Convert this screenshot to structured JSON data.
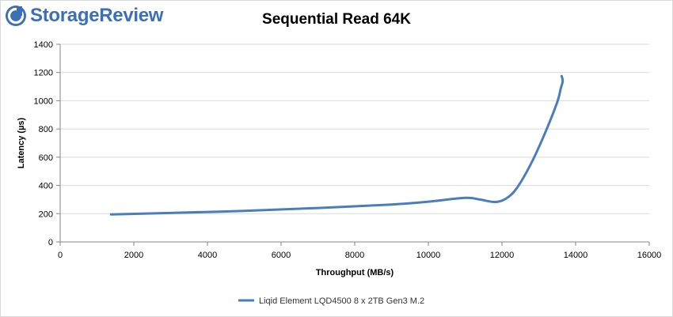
{
  "brand": {
    "name": "StorageReview",
    "accent": "#3b6fb6"
  },
  "chart_data": {
    "type": "line",
    "title": "Sequential Read 64K",
    "xlabel": "Throughput (MB/s)",
    "ylabel": "Latency (µs)",
    "xlim": [
      0,
      16000
    ],
    "ylim": [
      0,
      1400
    ],
    "xticks": [
      "0",
      "2000",
      "4000",
      "6000",
      "8000",
      "10000",
      "12000",
      "14000",
      "16000"
    ],
    "yticks": [
      "0",
      "200",
      "400",
      "600",
      "800",
      "1000",
      "1200",
      "1400"
    ],
    "grid": true,
    "legend_position": "bottom",
    "series": [
      {
        "name": "Liqid Element LQD4500 8 x 2TB Gen3 M.2",
        "color": "#4a7ebb",
        "x": [
          1380,
          3000,
          5000,
          7000,
          9000,
          10000,
          11000,
          11400,
          11800,
          12100,
          12400,
          12800,
          13200,
          13500,
          13600,
          13650,
          13620
        ],
        "y": [
          195,
          205,
          220,
          240,
          265,
          285,
          312,
          300,
          283,
          305,
          380,
          560,
          790,
          990,
          1090,
          1140,
          1175
        ]
      }
    ]
  }
}
